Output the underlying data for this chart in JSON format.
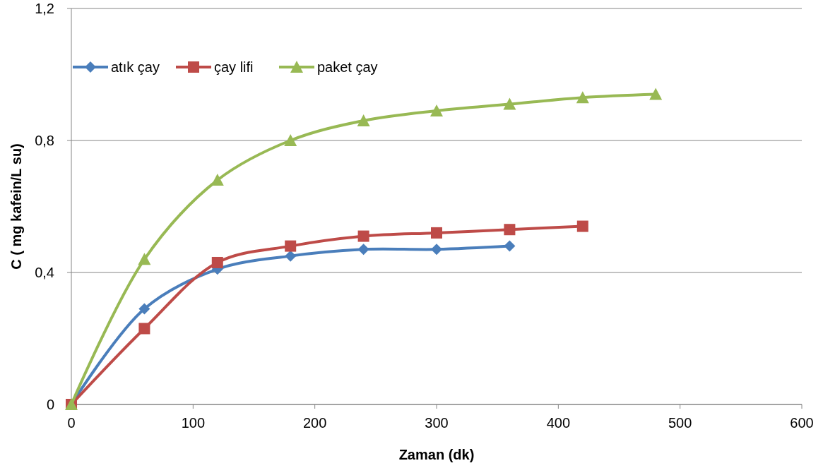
{
  "chart_data": {
    "type": "line",
    "xlabel": "Zaman (dk)",
    "ylabel": "C ( mg kafein/L su)",
    "xlim": [
      0,
      600
    ],
    "xticks": [
      0,
      100,
      200,
      300,
      400,
      500,
      600
    ],
    "ylim": [
      0,
      1.2
    ],
    "yticks": [
      0,
      {
        "value": 0.4,
        "label": "0,4"
      },
      {
        "value": 0.8,
        "label": "0,8"
      },
      {
        "value": 1.2,
        "label": "1,2"
      }
    ],
    "grid": "y",
    "legend": "top left",
    "line_style": "solid",
    "series": [
      {
        "name": "atık çay",
        "color": "#4a7ebb",
        "marker": "diamond",
        "x": [
          0,
          60,
          120,
          180,
          240,
          300,
          360
        ],
        "values": [
          0,
          0.29,
          0.41,
          0.45,
          0.47,
          0.47,
          0.48
        ]
      },
      {
        "name": "çay lifi",
        "color": "#be4b48",
        "marker": "square",
        "x": [
          0,
          60,
          120,
          180,
          240,
          300,
          360,
          420
        ],
        "values": [
          0,
          0.23,
          0.43,
          0.48,
          0.51,
          0.52,
          0.53,
          0.54
        ]
      },
      {
        "name": "paket çay",
        "color": "#98b954",
        "marker": "triangle",
        "x": [
          0,
          60,
          120,
          180,
          240,
          300,
          360,
          420,
          480
        ],
        "values": [
          0,
          0.44,
          0.68,
          0.8,
          0.86,
          0.89,
          0.91,
          0.93,
          0.94
        ]
      }
    ]
  }
}
